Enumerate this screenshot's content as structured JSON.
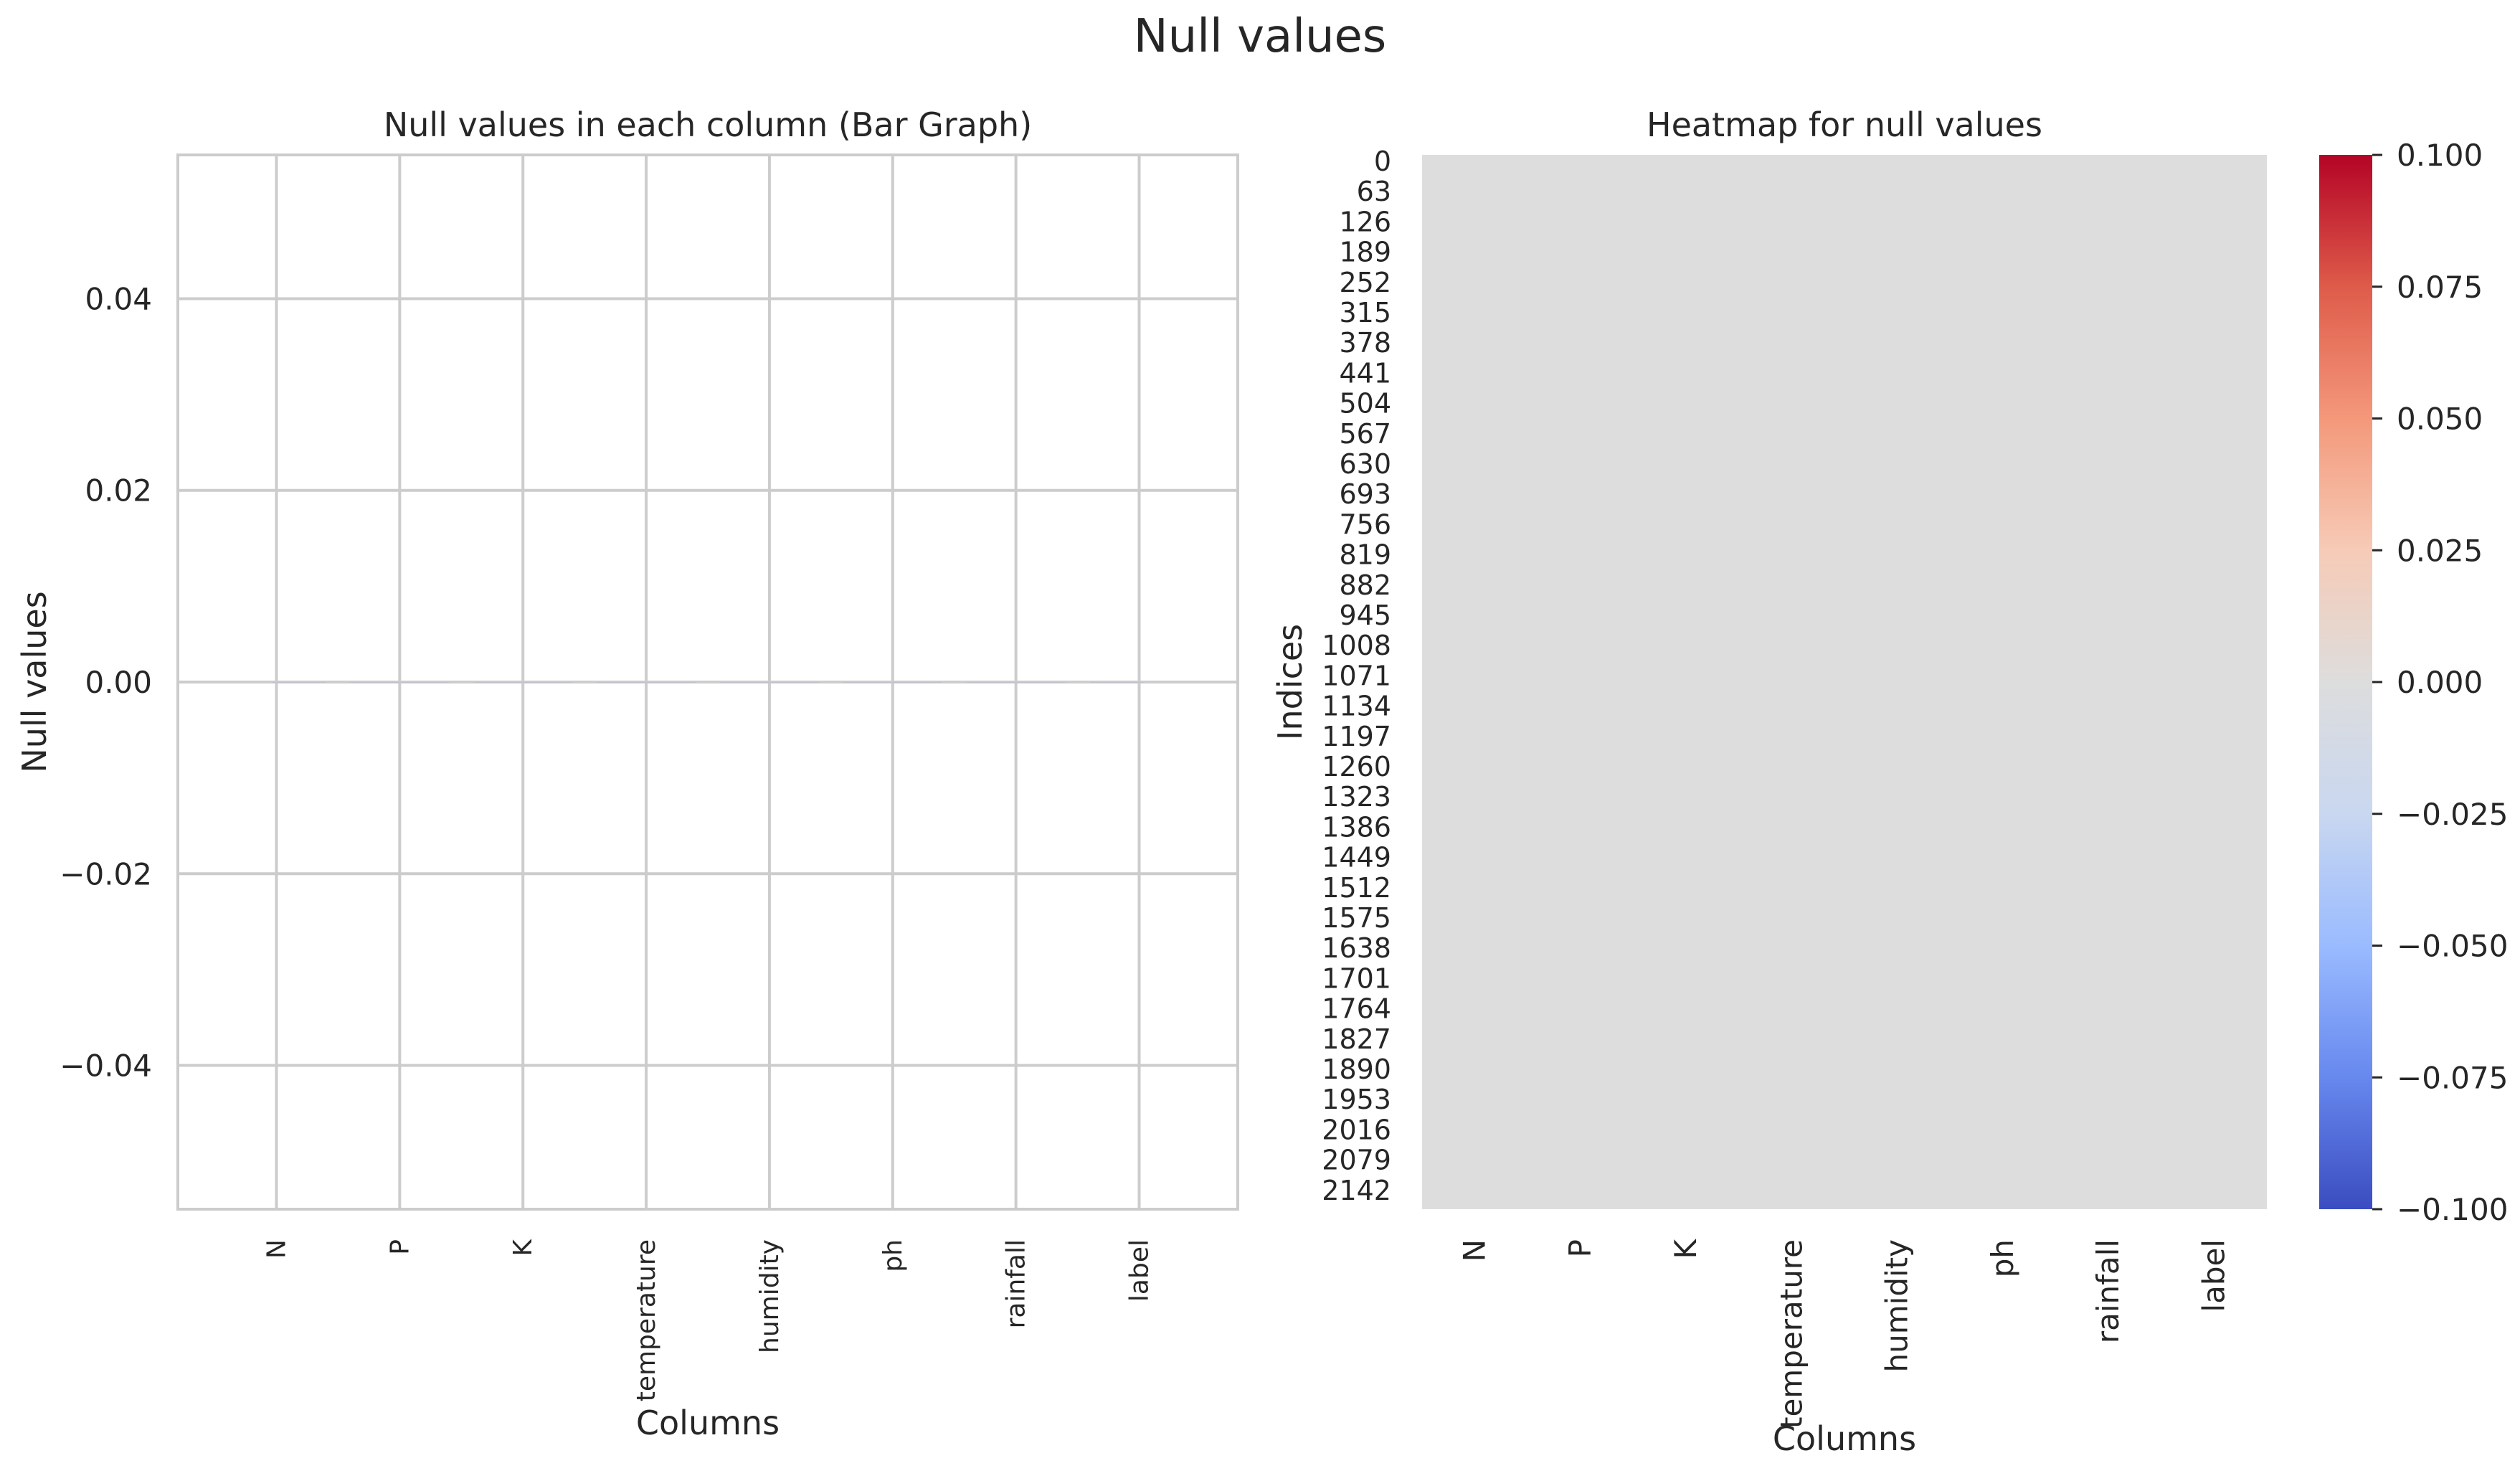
{
  "figure": {
    "suptitle": "Null values"
  },
  "chart_data": [
    {
      "type": "bar",
      "title": "Null values in each column (Bar Graph)",
      "xlabel": "Columns",
      "ylabel": "Null values",
      "categories": [
        "N",
        "P",
        "K",
        "temperature",
        "humidity",
        "ph",
        "rainfall",
        "label"
      ],
      "values": [
        0,
        0,
        0,
        0,
        0,
        0,
        0,
        0
      ],
      "ylim": [
        -0.055,
        0.055
      ],
      "yticks": [
        -0.04,
        -0.02,
        0.0,
        0.02,
        0.04
      ],
      "ytick_labels": [
        "−0.04",
        "−0.02",
        "0.00",
        "0.02",
        "0.04"
      ],
      "grid": true
    },
    {
      "type": "heatmap",
      "title": "Heatmap for null values",
      "xlabel": "Columns",
      "ylabel": "Indices",
      "columns": [
        "N",
        "P",
        "K",
        "temperature",
        "humidity",
        "ph",
        "rainfall",
        "label"
      ],
      "row_tick_labels": [
        "0",
        "63",
        "126",
        "189",
        "252",
        "315",
        "378",
        "441",
        "504",
        "567",
        "630",
        "693",
        "756",
        "819",
        "882",
        "945",
        "1008",
        "1071",
        "1134",
        "1197",
        "1260",
        "1323",
        "1386",
        "1449",
        "1512",
        "1575",
        "1638",
        "1701",
        "1764",
        "1827",
        "1890",
        "1953",
        "2016",
        "2079",
        "2142"
      ],
      "value": 0,
      "cell_color": "#dddddd",
      "colormap": "coolwarm",
      "colorbar": {
        "range": [
          -0.1,
          0.1
        ],
        "ticks": [
          -0.1,
          -0.075,
          -0.05,
          -0.025,
          0.0,
          0.025,
          0.05,
          0.075,
          0.1
        ],
        "tick_labels": [
          "−0.100",
          "−0.075",
          "−0.050",
          "−0.025",
          "0.000",
          "0.025",
          "0.050",
          "0.075",
          "0.100"
        ],
        "colors": [
          "#3b4cc0",
          "#6788ee",
          "#9abbff",
          "#c9d7f0",
          "#dddddd",
          "#f6cbb7",
          "#f4987a",
          "#de5b4a",
          "#b40426"
        ]
      }
    }
  ]
}
